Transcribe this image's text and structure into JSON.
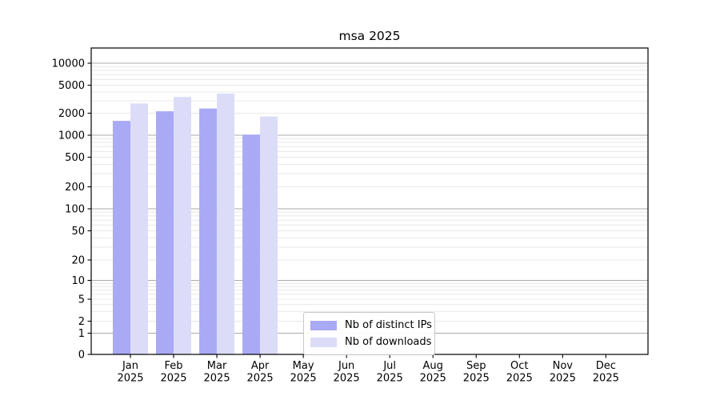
{
  "chart_data": {
    "type": "bar",
    "title": "msa 2025",
    "yscale": "symlog",
    "grid": "horizontal",
    "legend_position": "lower-center",
    "year": "2025",
    "months": [
      "Jan",
      "Feb",
      "Mar",
      "Apr",
      "May",
      "Jun",
      "Jul",
      "Aug",
      "Sep",
      "Oct",
      "Nov",
      "Dec"
    ],
    "categories": [
      "Jan 2025",
      "Feb 2025",
      "Mar 2025",
      "Apr 2025",
      "May 2025",
      "Jun 2025",
      "Jul 2025",
      "Aug 2025",
      "Sep 2025",
      "Oct 2025",
      "Nov 2025",
      "Dec 2025"
    ],
    "y_ticks": [
      0,
      1,
      2,
      5,
      10,
      20,
      50,
      100,
      200,
      500,
      1000,
      2000,
      5000,
      10000
    ],
    "ylim": [
      0,
      14000
    ],
    "series": [
      {
        "name": "Nb of distinct IPs",
        "color": "#a9a9f6",
        "values": [
          1570,
          2130,
          2330,
          1020,
          null,
          null,
          null,
          null,
          null,
          null,
          null,
          null
        ]
      },
      {
        "name": "Nb of downloads",
        "color": "#dcdcf9",
        "values": [
          2750,
          3400,
          3800,
          1800,
          null,
          null,
          null,
          null,
          null,
          null,
          null,
          null
        ]
      }
    ],
    "colors": {
      "major_grid": "#ababab",
      "minor_grid": "#e8e8e8",
      "axis": "#000000"
    }
  }
}
